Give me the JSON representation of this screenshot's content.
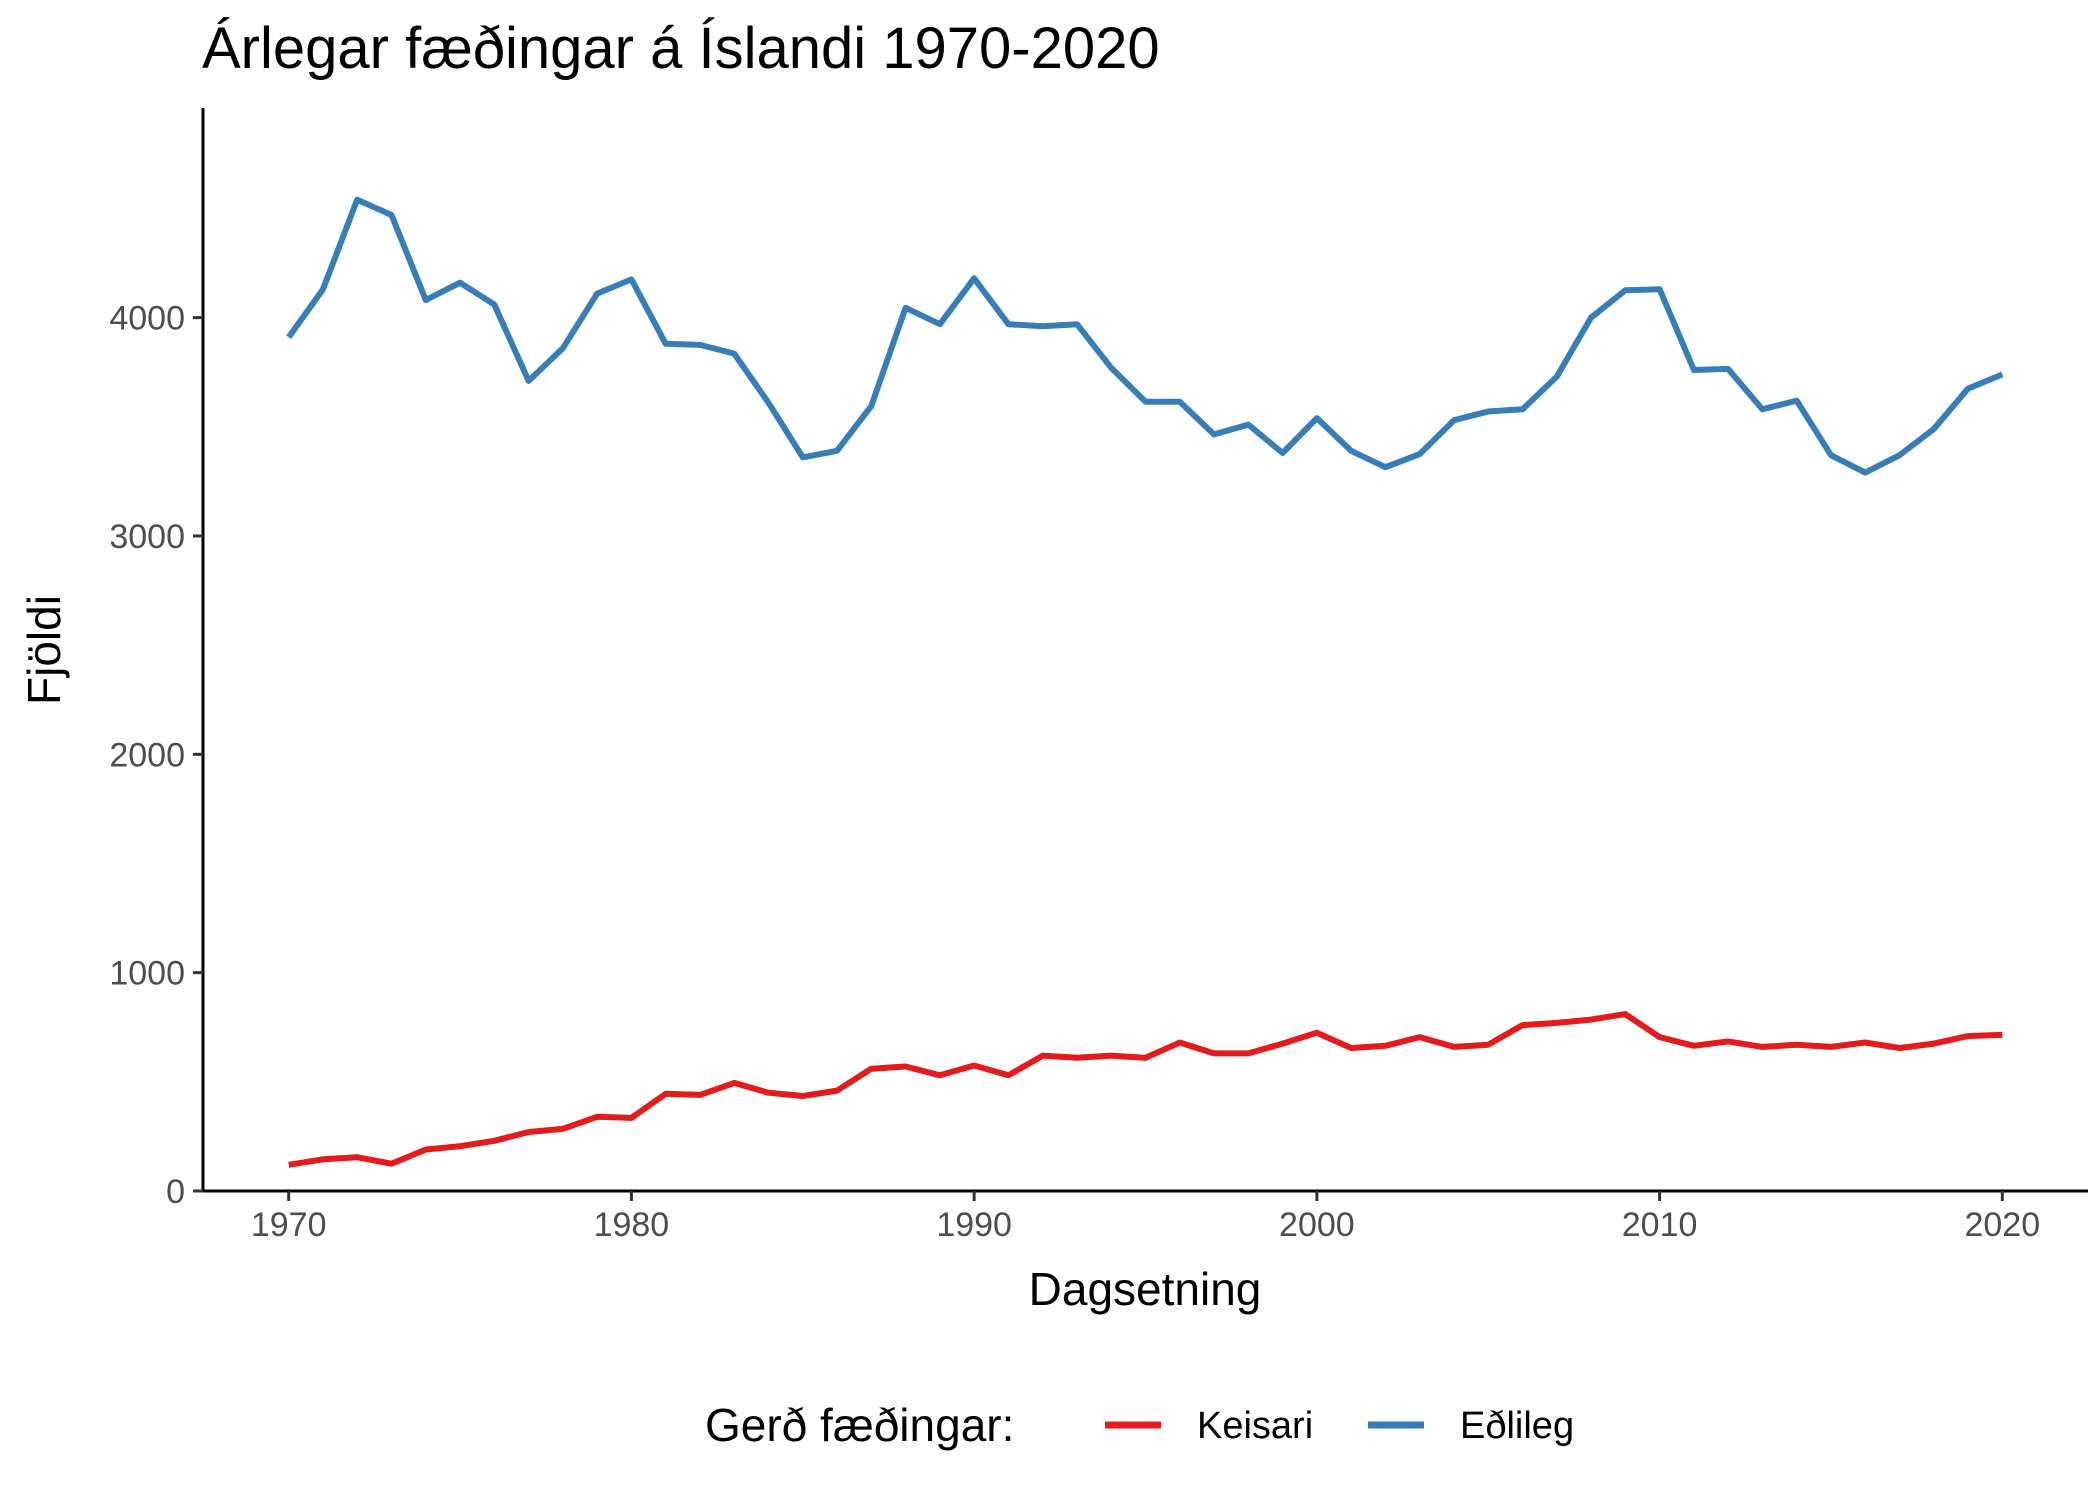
{
  "chart_data": {
    "type": "line",
    "title": "Árlegar fæðingar á Íslandi 1970-2020",
    "xlabel": "Dagsetning",
    "ylabel": "Fjöldi",
    "xlim": [
      1967.5,
      2022.5
    ],
    "ylim": [
      0,
      4960
    ],
    "x_ticks": [
      1970,
      1980,
      1990,
      2000,
      2010,
      2020
    ],
    "y_ticks": [
      0,
      1000,
      2000,
      3000,
      4000
    ],
    "grid": false,
    "legend": {
      "title": "Gerð fæðingar:",
      "position": "bottom"
    },
    "x": [
      1970,
      1971,
      1972,
      1973,
      1974,
      1975,
      1976,
      1977,
      1978,
      1979,
      1980,
      1981,
      1982,
      1983,
      1984,
      1985,
      1986,
      1987,
      1988,
      1989,
      1990,
      1991,
      1992,
      1993,
      1994,
      1995,
      1996,
      1997,
      1998,
      1999,
      2000,
      2001,
      2002,
      2003,
      2004,
      2005,
      2006,
      2007,
      2008,
      2009,
      2010,
      2011,
      2012,
      2013,
      2014,
      2015,
      2016,
      2017,
      2018,
      2019,
      2020
    ],
    "series": [
      {
        "name": "Keisari",
        "color": "#e41a1c",
        "values": [
          120,
          145,
          155,
          125,
          190,
          205,
          230,
          270,
          285,
          340,
          335,
          445,
          440,
          495,
          450,
          435,
          460,
          560,
          570,
          530,
          575,
          530,
          620,
          610,
          620,
          610,
          680,
          630,
          630,
          675,
          725,
          655,
          665,
          705,
          660,
          670,
          760,
          770,
          785,
          810,
          705,
          665,
          685,
          660,
          670,
          660,
          680,
          655,
          675,
          710,
          715
        ]
      },
      {
        "name": "Eðlileg",
        "color": "#377eb8",
        "values": [
          3910,
          4130,
          4540,
          4470,
          4080,
          4160,
          4060,
          3710,
          3860,
          4110,
          4175,
          3880,
          3875,
          3835,
          3610,
          3360,
          3390,
          3595,
          4045,
          3970,
          4180,
          3970,
          3960,
          3970,
          3770,
          3615,
          3615,
          3465,
          3510,
          3380,
          3540,
          3390,
          3315,
          3375,
          3530,
          3570,
          3580,
          3730,
          4000,
          4125,
          4130,
          3760,
          3765,
          3580,
          3620,
          3370,
          3290,
          3370,
          3490,
          3675,
          3740
        ]
      }
    ]
  }
}
